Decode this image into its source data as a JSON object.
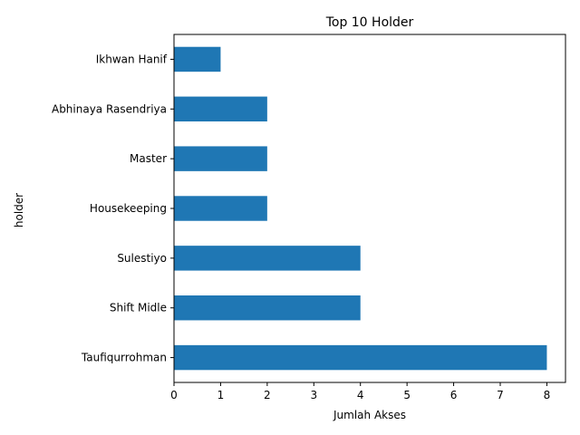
{
  "chart_data": {
    "type": "bar",
    "orientation": "horizontal",
    "title": "Top 10 Holder",
    "xlabel": "Jumlah Akses",
    "ylabel": "holder",
    "categories": [
      "Taufiqurrohman",
      "Shift Midle",
      "Sulestiyo",
      "Housekeeping",
      "Master",
      "Abhinaya Rasendriya",
      "Ikhwan Hanif"
    ],
    "values": [
      8,
      4,
      4,
      2,
      2,
      2,
      1
    ],
    "xlim": [
      0,
      8.4
    ],
    "xticks": [
      "0",
      "1",
      "2",
      "3",
      "4",
      "5",
      "6",
      "7",
      "8"
    ],
    "grid": false,
    "legend": "none",
    "bar_color": "#1f77b4"
  }
}
